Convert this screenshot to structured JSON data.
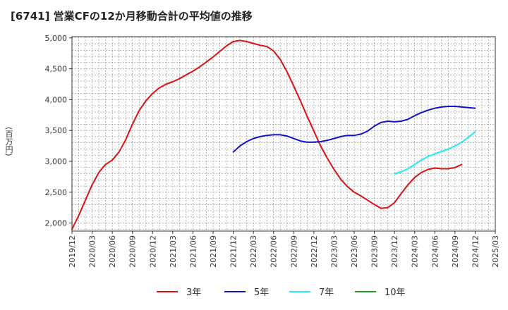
{
  "title": "[6741]  営業CFの12か月移動合計の平均値の推移",
  "chart_data": {
    "type": "line",
    "title": "[6741]  営業CFの12か月移動合計の平均値の推移",
    "ylabel": "(百万円)",
    "xlabel": "",
    "ylim": [
      1870,
      5020
    ],
    "yticks": [
      2000,
      2500,
      3000,
      3500,
      4000,
      4500,
      5000
    ],
    "ytick_labels": [
      "2,000",
      "2,500",
      "3,000",
      "3,500",
      "4,000",
      "4,500",
      "5,000"
    ],
    "xlim": [
      "2019-12",
      "2025-03"
    ],
    "xticks": [
      "2019/12",
      "2020/03",
      "2020/06",
      "2020/09",
      "2020/12",
      "2021/03",
      "2021/06",
      "2021/09",
      "2021/12",
      "2022/03",
      "2022/06",
      "2022/09",
      "2022/12",
      "2023/03",
      "2023/06",
      "2023/09",
      "2023/12",
      "2024/03",
      "2024/06",
      "2024/09",
      "2024/12",
      "2025/03"
    ],
    "grid": true,
    "legend_position": "bottom",
    "series": [
      {
        "name": "3年",
        "color": "#dd1111",
        "x": [
          "2019-12",
          "2020-01",
          "2020-02",
          "2020-03",
          "2020-04",
          "2020-05",
          "2020-06",
          "2020-07",
          "2020-08",
          "2020-09",
          "2020-10",
          "2020-11",
          "2020-12",
          "2021-01",
          "2021-02",
          "2021-03",
          "2021-04",
          "2021-05",
          "2021-06",
          "2021-07",
          "2021-08",
          "2021-09",
          "2021-10",
          "2021-11",
          "2021-12",
          "2022-01",
          "2022-02",
          "2022-03",
          "2022-04",
          "2022-05",
          "2022-06",
          "2022-07",
          "2022-08",
          "2022-09",
          "2022-10",
          "2022-11",
          "2022-12",
          "2023-01",
          "2023-02",
          "2023-03",
          "2023-04",
          "2023-05",
          "2023-06",
          "2023-07",
          "2023-08",
          "2023-09",
          "2023-10",
          "2023-11",
          "2023-12",
          "2024-01",
          "2024-02",
          "2024-03",
          "2024-04",
          "2024-05",
          "2024-06",
          "2024-07",
          "2024-08",
          "2024-09",
          "2024-10",
          "2024-11",
          "2024-12"
        ],
        "values": [
          1900,
          2120,
          2370,
          2620,
          2820,
          2950,
          3020,
          3150,
          3350,
          3600,
          3820,
          3980,
          4100,
          4190,
          4250,
          4290,
          4340,
          4400,
          4460,
          4530,
          4610,
          4690,
          4780,
          4870,
          4940,
          4960,
          4940,
          4910,
          4880,
          4860,
          4790,
          4650,
          4450,
          4220,
          3980,
          3730,
          3490,
          3250,
          3050,
          2870,
          2710,
          2590,
          2500,
          2440,
          2370,
          2300,
          2240,
          2250,
          2330,
          2480,
          2620,
          2740,
          2820,
          2870,
          2890,
          2880,
          2880,
          2900,
          2950,
          null,
          null
        ],
        "note": ""
      },
      {
        "name": "5年",
        "color": "#1111cc",
        "x": [
          "2021-12",
          "2022-01",
          "2022-02",
          "2022-03",
          "2022-04",
          "2022-05",
          "2022-06",
          "2022-07",
          "2022-08",
          "2022-09",
          "2022-10",
          "2022-11",
          "2022-12",
          "2023-01",
          "2023-02",
          "2023-03",
          "2023-04",
          "2023-05",
          "2023-06",
          "2023-07",
          "2023-08",
          "2023-09",
          "2023-10",
          "2023-11",
          "2023-12",
          "2024-01",
          "2024-02",
          "2024-03",
          "2024-04",
          "2024-05",
          "2024-06",
          "2024-07",
          "2024-08",
          "2024-09",
          "2024-10",
          "2024-11",
          "2024-12"
        ],
        "values": [
          3150,
          3250,
          3320,
          3370,
          3400,
          3420,
          3430,
          3430,
          3410,
          3370,
          3330,
          3310,
          3310,
          3320,
          3340,
          3370,
          3400,
          3420,
          3420,
          3440,
          3490,
          3570,
          3630,
          3650,
          3640,
          3650,
          3680,
          3740,
          3790,
          3830,
          3860,
          3880,
          3890,
          3890,
          3880,
          3870,
          3860
        ]
      },
      {
        "name": "7年",
        "color": "#22eeee",
        "x": [
          "2023-12",
          "2024-01",
          "2024-02",
          "2024-03",
          "2024-04",
          "2024-05",
          "2024-06",
          "2024-07",
          "2024-08",
          "2024-09",
          "2024-10",
          "2024-11",
          "2024-12"
        ],
        "values": [
          2800,
          2830,
          2880,
          2950,
          3020,
          3080,
          3120,
          3160,
          3200,
          3250,
          3310,
          3390,
          3480
        ]
      },
      {
        "name": "10年",
        "color": "#229922",
        "x": [],
        "values": []
      }
    ]
  }
}
